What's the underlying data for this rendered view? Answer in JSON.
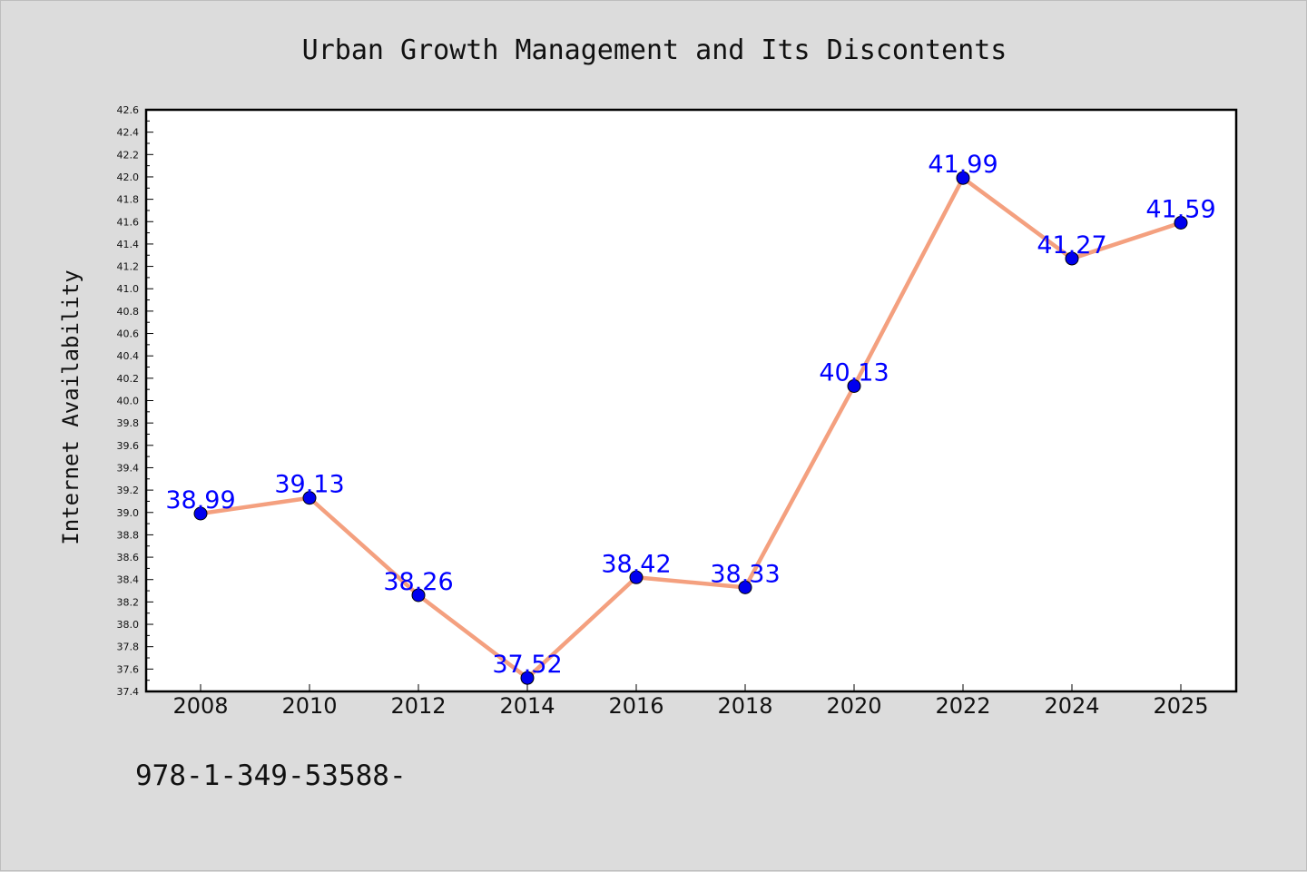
{
  "chart_data": {
    "type": "line",
    "title": "Urban Growth Management and Its Discontents",
    "xlabel": "",
    "ylabel": "Internet Availability",
    "categories": [
      "2008",
      "2010",
      "2012",
      "2014",
      "2016",
      "2018",
      "2020",
      "2022",
      "2024",
      "2025"
    ],
    "series": [
      {
        "values": [
          38.99,
          39.13,
          38.26,
          37.52,
          38.42,
          38.33,
          40.13,
          41.99,
          41.27,
          41.59
        ],
        "labels": [
          "38.99",
          "39.13",
          "38.26",
          "37.52",
          "38.42",
          "38.33",
          "40.13",
          "41.99",
          "41.27",
          "41.59"
        ],
        "line_color": "#f4a07f",
        "marker_color": "#0000ee",
        "label_color": "#0000ff"
      }
    ],
    "ylim": [
      37.4,
      42.6
    ],
    "yticks": [
      "37.4",
      "37.6",
      "37.8",
      "38.0",
      "38.2",
      "38.4",
      "38.6",
      "38.8",
      "39.0",
      "39.2",
      "39.4",
      "39.6",
      "39.8",
      "40.0",
      "40.2",
      "40.4",
      "40.6",
      "40.8",
      "41.0",
      "41.2",
      "41.4",
      "41.6",
      "41.8",
      "42.0",
      "42.2",
      "42.4",
      "42.6"
    ],
    "grid": false,
    "legend": "none"
  },
  "footer_text": "978-1-349-53588-"
}
